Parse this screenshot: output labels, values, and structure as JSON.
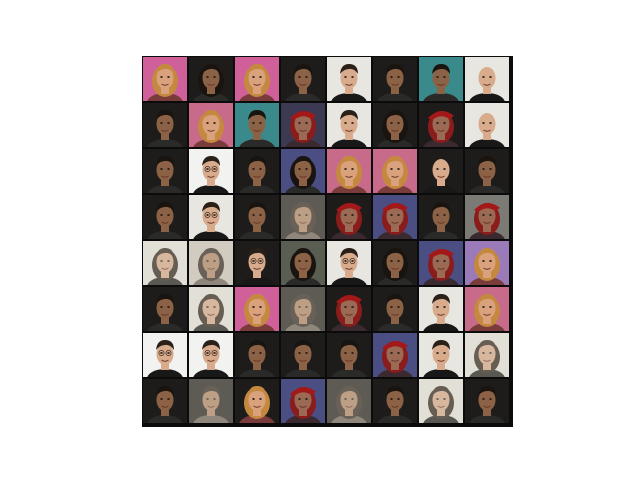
{
  "figure": {
    "description_kind": "grid of generated face samples",
    "rows": 8,
    "cols": 8,
    "frame_color": "#0b0b0b",
    "background": "#ffffff",
    "samples": [
      [
        "blonde-woman-pink",
        "woman-hat-dark",
        "blonde-woman-pink",
        "man-dark-hair",
        "man-light-bg",
        "man-dark-hair-bg",
        "man-teal-bg",
        "man-bald-light"
      ],
      [
        "man-dark-hair",
        "blonde-woman",
        "man-teal",
        "woman-red-hat",
        "man-light",
        "woman-dark",
        "woman-red-hat-dark",
        "man-bald"
      ],
      [
        "man-dark-hair",
        "man-glasses-white",
        "man-dark-hair",
        "woman-hat-blue",
        "blonde-woman",
        "blonde-woman-light",
        "man-bald-dark",
        "man-dark-hair"
      ],
      [
        "man-dark-hair",
        "man-glasses",
        "man-dark-hair",
        "woman-dark-blur",
        "woman-red-hat-dark",
        "woman-red-hat-blue",
        "man-dark-hair-grey",
        "woman-red-hat-grey"
      ],
      [
        "woman-blur-light",
        "woman-blur",
        "man-glasses-dark",
        "woman-long-hair",
        "man-glasses",
        "woman-dark",
        "woman-red-hat-blue",
        "blonde-woman-purple"
      ],
      [
        "man-dark-hair",
        "woman-blur-light",
        "blonde-woman-pink",
        "woman-dark-blur",
        "woman-red-hat-dark",
        "man-dark-hair",
        "man-light",
        "blonde-woman"
      ],
      [
        "man-glasses-white",
        "man-glasses-white",
        "man-dark-hair",
        "man-dark-hair",
        "man-dark-hair",
        "woman-red-hat-blue",
        "man-light",
        "woman-blur-light"
      ],
      [
        "man-dark-hair",
        "man-blur-dark",
        "blonde-woman-dark",
        "woman-red-hat-blue",
        "woman-dark-blur",
        "man-dark-hair",
        "woman-blur-light",
        "man-dark-hair"
      ]
    ]
  },
  "palette": {
    "blonde": {
      "bg": "#c86a8a",
      "hair": "#c4893e",
      "skin": "#d9a27d",
      "shirt": "#7a3b3b"
    },
    "darkman": {
      "bg": "#5a5e52",
      "hair": "#1a1410",
      "skin": "#8c6246",
      "shirt": "#2a2a28"
    },
    "lightman": {
      "bg": "#e8e6e0",
      "hair": "#2a2018",
      "skin": "#d8ab8c",
      "shirt": "#181818"
    },
    "redhat": {
      "bg": "#3c3a52",
      "hair": "#8a1c1c",
      "skin": "#9a6a54",
      "shirt": "#3a2a30"
    },
    "blur": {
      "bg": "#cfc9bf",
      "hair": "#2e2620",
      "skin": "#b08466",
      "shirt": "#6a6056"
    }
  }
}
